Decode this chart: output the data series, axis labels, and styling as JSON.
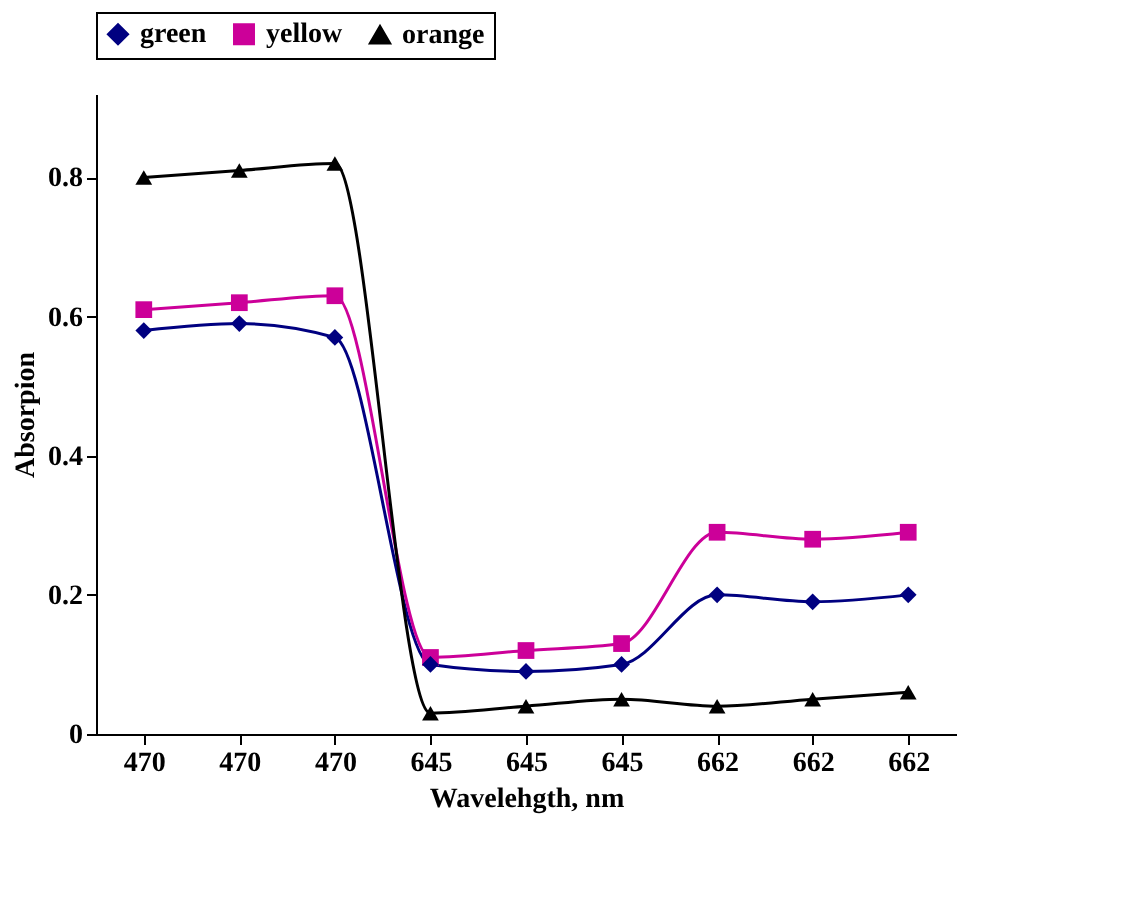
{
  "chart_data": {
    "type": "line",
    "xlabel": "Wavelehgth, nm",
    "ylabel": "Absorpion",
    "categories": [
      "470",
      "470",
      "470",
      "645",
      "645",
      "645",
      "662",
      "662",
      "662"
    ],
    "series": [
      {
        "name": "green",
        "color": "#000080",
        "marker": "diamond",
        "values": [
          0.58,
          0.59,
          0.57,
          0.1,
          0.09,
          0.1,
          0.2,
          0.19,
          0.2
        ]
      },
      {
        "name": "yellow",
        "color": "#cc0099",
        "marker": "square",
        "values": [
          0.61,
          0.62,
          0.63,
          0.11,
          0.12,
          0.13,
          0.29,
          0.28,
          0.29
        ]
      },
      {
        "name": "orange",
        "color": "#000000",
        "marker": "triangle",
        "values": [
          0.8,
          0.81,
          0.82,
          0.03,
          0.04,
          0.05,
          0.04,
          0.05,
          0.06
        ]
      }
    ],
    "ylim": [
      0,
      0.92
    ],
    "yticks": [
      {
        "value": 0,
        "label": "0"
      },
      0.2,
      0.4,
      0.6,
      0.8
    ],
    "grid": false,
    "legend": "top"
  }
}
